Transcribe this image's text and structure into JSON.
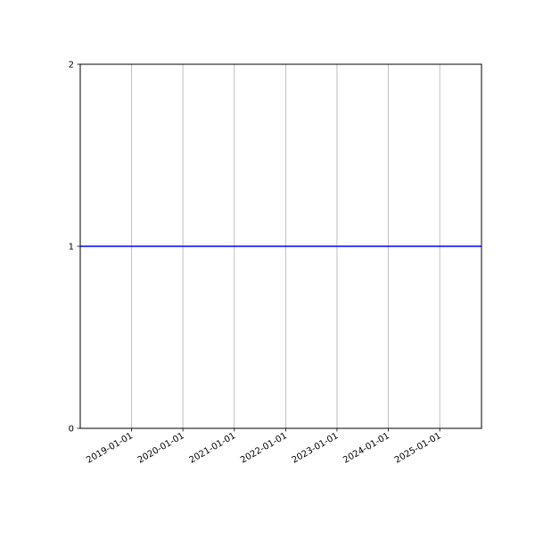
{
  "chart_data": {
    "type": "line",
    "title": "",
    "xlabel": "",
    "ylabel": "",
    "xlim": [
      "2018-01-01",
      "2025-10-25"
    ],
    "ylim": [
      0,
      2
    ],
    "x_ticks": [
      "2019-01-01",
      "2020-01-01",
      "2021-01-01",
      "2022-01-01",
      "2023-01-01",
      "2024-01-01",
      "2025-01-01"
    ],
    "y_ticks": [
      "0",
      "1",
      "2"
    ],
    "grid": "x-axis only",
    "series": [
      {
        "x": [
          "2018-01-01",
          "2025-10-25"
        ],
        "y": [
          1,
          1
        ],
        "color": "#0000ff"
      }
    ],
    "grid_color": "#b0b0b0"
  }
}
